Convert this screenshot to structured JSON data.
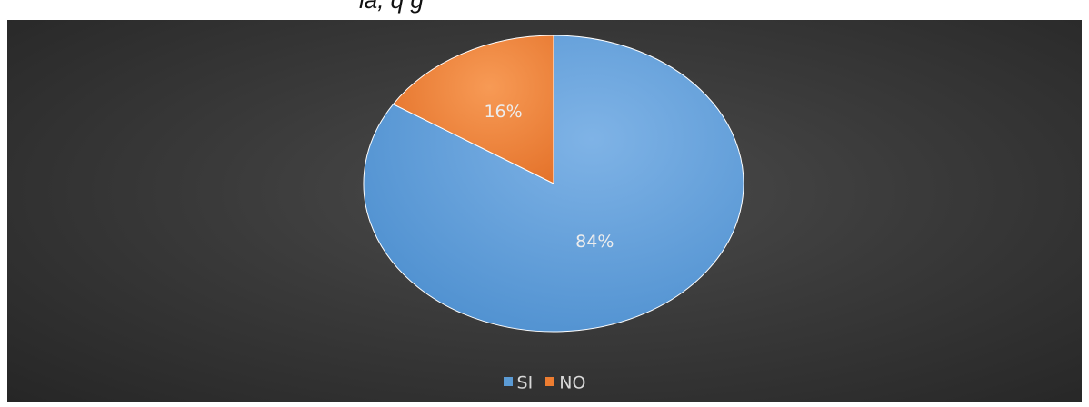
{
  "top_text": "la, q                                                          g",
  "colors": {
    "SI": "#5b9bd5",
    "NO": "#ed7d31",
    "label_text": "#ededed",
    "slice_border": "#ffffff"
  },
  "chart_data": {
    "type": "pie",
    "categories": [
      "SI",
      "NO"
    ],
    "values": [
      84,
      16
    ],
    "data_labels": [
      "84%",
      "16%"
    ],
    "start_angle_deg": 0,
    "direction": "clockwise",
    "legend_position": "bottom",
    "legend": [
      {
        "label": "SI",
        "color": "#5b9bd5"
      },
      {
        "label": "NO",
        "color": "#ed7d31"
      }
    ]
  }
}
